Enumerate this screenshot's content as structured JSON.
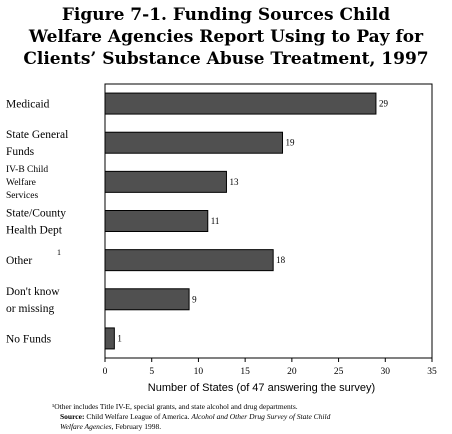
{
  "title": {
    "line1": "Figure 7-1.  Funding Sources Child",
    "line2": "Welfare Agencies Report Using to Pay for",
    "line3": "Clients’ Substance Abuse Treatment, 1997"
  },
  "chart_data": {
    "type": "bar",
    "orientation": "horizontal",
    "categories": [
      {
        "lines": [
          "Medicaid"
        ]
      },
      {
        "lines": [
          "State General",
          "Funds"
        ]
      },
      {
        "lines": [
          "IV-B Child",
          "Welfare",
          "Services"
        ],
        "small": true
      },
      {
        "lines": [
          "State/County",
          "Health Dept"
        ]
      },
      {
        "lines": [
          "Other"
        ],
        "footnote_mark": "1"
      },
      {
        "lines": [
          "Don't know",
          "or missing"
        ]
      },
      {
        "lines": [
          "No Funds"
        ]
      }
    ],
    "values": [
      29,
      19,
      13,
      11,
      18,
      9,
      1
    ],
    "xlabel": "Number of States (of 47 answering the survey)",
    "xlim": [
      0,
      35
    ],
    "xticks": [
      0,
      5,
      10,
      15,
      20,
      25,
      30,
      35
    ],
    "grid": false,
    "bar_color": "#505050",
    "bar_edge_color": "#000000"
  },
  "footnote": {
    "line1": "¹Other includes Title IV-E, special grants, and state alcohol and drug departments.",
    "source_label": "Source:",
    "source_text": " Child Welfare League of America. ",
    "source_italic": "Alcohol and Other Drug Survey of State Child",
    "line3_italic": "Welfare Agencies",
    "line3_text": ", February 1998."
  }
}
